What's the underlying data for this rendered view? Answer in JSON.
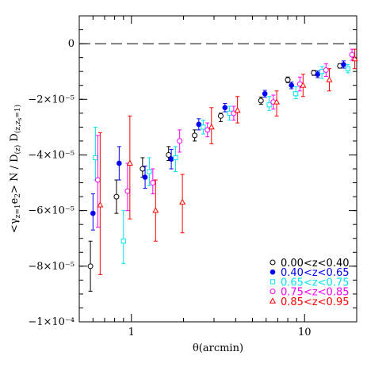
{
  "chart_data": {
    "type": "scatter",
    "title": "",
    "xlabel": "θ(arcmin)",
    "ylabel": "<γz=1 e2> N / D(z) D(z,zs=1)",
    "xscale": "log",
    "xlim": [
      0.5,
      20
    ],
    "ylim": [
      -0.0001,
      1e-05
    ],
    "x_ticks": [
      {
        "value": 1,
        "label": "1"
      },
      {
        "value": 10,
        "label": "10"
      }
    ],
    "y_ticks": [
      {
        "value": 0,
        "label": "0"
      },
      {
        "value": -2e-05,
        "label": "−2×10⁻⁵"
      },
      {
        "value": -4e-05,
        "label": "−4×10⁻⁵"
      },
      {
        "value": -6e-05,
        "label": "−6×10⁻⁵"
      },
      {
        "value": -8e-05,
        "label": "−8×10⁻⁵"
      },
      {
        "value": -0.0001,
        "label": "−1×10⁻⁴"
      }
    ],
    "zero_line": "dashed",
    "grid": false,
    "legend_position": "bottom-right",
    "series": [
      {
        "name": "0.00<z<0.40",
        "color": "#000000",
        "marker": "circle-open",
        "points": [
          {
            "x": 0.58,
            "y": -8e-05,
            "lo": -8.9e-05,
            "hi": -7.1e-05
          },
          {
            "x": 0.82,
            "y": -5.5e-05,
            "lo": -6.1e-05,
            "hi": -4.9e-05
          },
          {
            "x": 1.16,
            "y": -4.5e-05,
            "lo": -4.8e-05,
            "hi": -4.1e-05
          },
          {
            "x": 1.64,
            "y": -4e-05,
            "lo": -4.2e-05,
            "hi": -3.7e-05
          },
          {
            "x": 2.32,
            "y": -3.3e-05,
            "lo": -3.5e-05,
            "hi": -3.1e-05
          },
          {
            "x": 3.28,
            "y": -2.6e-05,
            "lo": -2.8e-05,
            "hi": -2.5e-05
          },
          {
            "x": 5.6,
            "y": -2.05e-05,
            "lo": -2.18e-05,
            "hi": -1.92e-05
          },
          {
            "x": 8.0,
            "y": -1.3e-05,
            "lo": -1.4e-05,
            "hi": -1.2e-05
          },
          {
            "x": 11.3,
            "y": -1.05e-05,
            "lo": -1.14e-05,
            "hi": -9.6e-06
          },
          {
            "x": 16.0,
            "y": -8e-06,
            "lo": -8.8e-06,
            "hi": -7.2e-06
          }
        ]
      },
      {
        "name": "0.40<z<0.65",
        "color": "#0000ff",
        "marker": "circle-filled",
        "points": [
          {
            "x": 0.6,
            "y": -6.1e-05,
            "lo": -6.7e-05,
            "hi": -5.4e-05
          },
          {
            "x": 0.85,
            "y": -4.3e-05,
            "lo": -4.9e-05,
            "hi": -3.7e-05
          },
          {
            "x": 1.2,
            "y": -4.8e-05,
            "lo": -5.2e-05,
            "hi": -4.4e-05
          },
          {
            "x": 1.7,
            "y": -4.15e-05,
            "lo": -4.5e-05,
            "hi": -3.8e-05
          },
          {
            "x": 2.45,
            "y": -2.9e-05,
            "lo": -3.1e-05,
            "hi": -2.7e-05
          },
          {
            "x": 3.47,
            "y": -2.3e-05,
            "lo": -2.45e-05,
            "hi": -2.15e-05
          },
          {
            "x": 5.9,
            "y": -1.8e-05,
            "lo": -1.92e-05,
            "hi": -1.68e-05
          },
          {
            "x": 8.4,
            "y": -1.5e-05,
            "lo": -1.62e-05,
            "hi": -1.38e-05
          },
          {
            "x": 11.9,
            "y": -1.1e-05,
            "lo": -1.22e-05,
            "hi": -9.8e-06
          },
          {
            "x": 16.8,
            "y": -7.5e-06,
            "lo": -8.8e-06,
            "hi": -6.2e-06
          }
        ]
      },
      {
        "name": "0.65<z<0.75",
        "color": "#00e5ee",
        "marker": "square-open",
        "points": [
          {
            "x": 0.62,
            "y": -4.1e-05,
            "lo": -4.9e-05,
            "hi": -3e-05
          },
          {
            "x": 0.9,
            "y": -7.1e-05,
            "lo": -7.9e-05,
            "hi": -6e-05
          },
          {
            "x": 1.27,
            "y": -4.6e-05,
            "lo": -5.1e-05,
            "hi": -4.1e-05
          },
          {
            "x": 1.8,
            "y": -4.1e-05,
            "lo": -4.6e-05,
            "hi": -3.7e-05
          },
          {
            "x": 2.6,
            "y": -3e-05,
            "lo": -3.25e-05,
            "hi": -2.75e-05
          },
          {
            "x": 3.69,
            "y": -2.5e-05,
            "lo": -2.75e-05,
            "hi": -2.25e-05
          },
          {
            "x": 6.25,
            "y": -2.2e-05,
            "lo": -2.4e-05,
            "hi": -1.9e-05
          },
          {
            "x": 8.9,
            "y": -1.8e-05,
            "lo": -1.98e-05,
            "hi": -1.55e-05
          },
          {
            "x": 12.6,
            "y": -1e-05,
            "lo": -1.25e-05,
            "hi": -8.2e-06
          },
          {
            "x": 17.8,
            "y": -9e-06,
            "lo": -1.05e-05,
            "hi": -7.5e-06
          }
        ]
      },
      {
        "name": "0.75<z<0.85",
        "color": "#ff00ff",
        "marker": "circle-open",
        "points": [
          {
            "x": 0.64,
            "y": -4.9e-05,
            "lo": -6.6e-05,
            "hi": -3.3e-05
          },
          {
            "x": 0.95,
            "y": -5.3e-05,
            "lo": -6e-05,
            "hi": -4.3e-05
          },
          {
            "x": 1.33,
            "y": -5e-05,
            "lo": -5.4e-05,
            "hi": -4.5e-05
          },
          {
            "x": 1.9,
            "y": -3.5e-05,
            "lo": -3.9e-05,
            "hi": -3.1e-05
          },
          {
            "x": 2.75,
            "y": -3.1e-05,
            "lo": -3.35e-05,
            "hi": -2.85e-05
          },
          {
            "x": 3.9,
            "y": -2.5e-05,
            "lo": -2.75e-05,
            "hi": -2.25e-05
          },
          {
            "x": 6.6,
            "y": -2.1e-05,
            "lo": -2.35e-05,
            "hi": -1.85e-05
          },
          {
            "x": 9.4,
            "y": -1.45e-05,
            "lo": -1.7e-05,
            "hi": -1.2e-05
          },
          {
            "x": 13.3,
            "y": -9.5e-06,
            "lo": -1.18e-05,
            "hi": -7.2e-06
          },
          {
            "x": 18.8,
            "y": -4e-06,
            "lo": -6e-06,
            "hi": -2e-06
          }
        ]
      },
      {
        "name": "0.85<z<0.95",
        "color": "#ff0000",
        "marker": "triangle-open",
        "points": [
          {
            "x": 0.66,
            "y": -5.8e-05,
            "lo": -8.3e-05,
            "hi": -3.2e-05
          },
          {
            "x": 0.98,
            "y": -4.3e-05,
            "lo": -6.3e-05,
            "hi": -2.6e-05
          },
          {
            "x": 1.38,
            "y": -6e-05,
            "lo": -7.1e-05,
            "hi": -4.9e-05
          },
          {
            "x": 1.97,
            "y": -5.7e-05,
            "lo": -6.8e-05,
            "hi": -4.7e-05
          },
          {
            "x": 2.9,
            "y": -3e-05,
            "lo": -3.6e-05,
            "hi": -2.3e-05
          },
          {
            "x": 4.1,
            "y": -2.4e-05,
            "lo": -2.85e-05,
            "hi": -1.9e-05
          },
          {
            "x": 6.9,
            "y": -2.1e-05,
            "lo": -2.6e-05,
            "hi": -1.7e-05
          },
          {
            "x": 9.8,
            "y": -1.5e-05,
            "lo": -1.9e-05,
            "hi": -1.1e-05
          },
          {
            "x": 13.9,
            "y": -1.3e-05,
            "lo": -1.7e-05,
            "hi": -9e-06
          },
          {
            "x": 19.5,
            "y": -5.5e-06,
            "lo": -9e-06,
            "hi": -2e-06
          }
        ]
      }
    ]
  }
}
